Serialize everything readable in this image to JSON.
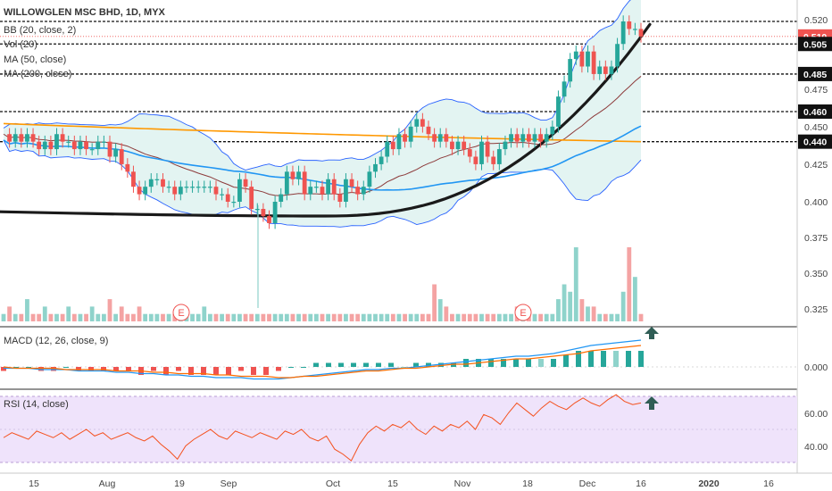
{
  "header": {
    "title": "WILLOWGLEN MSC BHD, 1D, MYX",
    "indicators": [
      "BB (20, close, 2)",
      "Vol (20)",
      "MA (50, close)",
      "MA (200, close)"
    ]
  },
  "panes": {
    "macd_label": "MACD (12, 26, close, 9)",
    "rsi_label": "RSI (14, close)"
  },
  "colors": {
    "up": "#26a69a",
    "down": "#ef5350",
    "vol_up": "#8fd3cb",
    "vol_down": "#f4a3a3",
    "bb_band": "#2962ff",
    "bb_fill": "#e3f4f2",
    "ma_mid": "#8d3b3b",
    "ma50": "#2196f3",
    "ma200": "#ff9800",
    "trend_curve": "#1a1a1a",
    "macd_line": "#2196f3",
    "signal_line": "#ff6d00",
    "rsi_line": "#f4511e",
    "rsi_band": "#efe3fb",
    "arrow": "#2f5d55",
    "last_price_tag": "#ef5350"
  },
  "icons": [
    "earnings-e-icon",
    "earnings-e-icon",
    "arrow-up-icon",
    "arrow-up-icon"
  ],
  "chart_data": [
    {
      "type": "candlestick",
      "ylim": [
        0.315,
        0.525
      ],
      "y_ticks": [
        "0.520",
        "0.510",
        "0.505",
        "0.485",
        "0.475",
        "0.460",
        "0.450",
        "0.440",
        "0.425",
        "0.400",
        "0.375",
        "0.350",
        "0.325"
      ],
      "x_ticks": [
        "15",
        "Aug",
        "19",
        "Sep",
        "Oct",
        "15",
        "Nov",
        "18",
        "Dec",
        "16",
        "2020",
        "16"
      ],
      "highlighted_prices": [
        "0.520",
        "0.505",
        "0.485",
        "0.460",
        "0.440"
      ],
      "last_price": "0.510",
      "horizontal_levels": [
        0.52,
        0.505,
        0.485,
        0.46,
        0.44
      ],
      "earnings_markers": [
        "E",
        "E"
      ],
      "closes": [
        0.445,
        0.44,
        0.445,
        0.44,
        0.445,
        0.44,
        0.435,
        0.44,
        0.435,
        0.445,
        0.44,
        0.44,
        0.435,
        0.44,
        0.435,
        0.435,
        0.44,
        0.44,
        0.43,
        0.435,
        0.425,
        0.42,
        0.41,
        0.405,
        0.41,
        0.415,
        0.415,
        0.41,
        0.41,
        0.405,
        0.41,
        0.41,
        0.41,
        0.41,
        0.41,
        0.41,
        0.405,
        0.405,
        0.4,
        0.4,
        0.415,
        0.41,
        0.395,
        0.395,
        0.39,
        0.385,
        0.4,
        0.405,
        0.42,
        0.415,
        0.42,
        0.405,
        0.41,
        0.41,
        0.405,
        0.415,
        0.405,
        0.4,
        0.415,
        0.41,
        0.405,
        0.41,
        0.42,
        0.425,
        0.43,
        0.44,
        0.435,
        0.445,
        0.44,
        0.45,
        0.455,
        0.45,
        0.445,
        0.44,
        0.445,
        0.44,
        0.435,
        0.44,
        0.435,
        0.43,
        0.425,
        0.44,
        0.43,
        0.425,
        0.435,
        0.44,
        0.445,
        0.44,
        0.445,
        0.44,
        0.445,
        0.44,
        0.445,
        0.45,
        0.47,
        0.48,
        0.495,
        0.5,
        0.49,
        0.5,
        0.485,
        0.49,
        0.485,
        0.49,
        0.505,
        0.52,
        0.515,
        0.515,
        0.51
      ],
      "volumes": [
        1,
        2,
        1,
        1,
        3,
        1,
        1,
        2,
        1,
        1,
        1,
        2,
        1,
        1,
        1,
        2,
        1,
        1,
        3,
        1,
        2,
        1,
        1,
        2,
        1,
        1,
        1,
        1,
        1,
        1,
        1,
        1,
        1,
        1,
        2,
        1,
        1,
        1,
        1,
        1,
        1,
        1,
        1,
        1,
        1,
        1,
        1,
        1,
        1,
        1,
        1,
        1,
        1,
        1,
        1,
        1,
        1,
        1,
        1,
        1,
        1,
        1,
        1,
        1,
        1,
        1,
        1,
        1,
        1,
        1,
        1,
        1,
        1,
        5,
        3,
        2,
        1,
        1,
        1,
        1,
        1,
        1,
        1,
        1,
        1,
        1,
        1,
        2,
        1,
        1,
        1,
        1,
        1,
        1,
        3,
        5,
        4,
        10,
        3,
        2,
        2,
        1,
        1,
        1,
        1,
        4,
        10,
        6,
        1
      ]
    },
    {
      "type": "line",
      "title": "MACD (12, 26, close, 9)",
      "y_ticks": [
        "0.000"
      ],
      "macd": [
        -0.001,
        -0.001,
        -0.001,
        -0.002,
        -0.002,
        -0.002,
        -0.003,
        -0.003,
        -0.003,
        -0.004,
        -0.004,
        -0.005,
        -0.005,
        -0.006,
        -0.006,
        -0.007,
        -0.007,
        -0.008,
        -0.008,
        -0.008,
        -0.009,
        -0.009,
        -0.009,
        -0.008,
        -0.007,
        -0.006,
        -0.005,
        -0.004,
        -0.003,
        -0.002,
        -0.002,
        -0.001,
        -0.001,
        0.0,
        0.001,
        0.002,
        0.003,
        0.004,
        0.005,
        0.006,
        0.007,
        0.008,
        0.008,
        0.009,
        0.01,
        0.012,
        0.014,
        0.016,
        0.017,
        0.018,
        0.019,
        0.02
      ],
      "signal": [
        -0.0,
        -0.001,
        -0.001,
        -0.001,
        -0.001,
        -0.002,
        -0.002,
        -0.002,
        -0.002,
        -0.003,
        -0.003,
        -0.003,
        -0.004,
        -0.004,
        -0.005,
        -0.005,
        -0.005,
        -0.006,
        -0.006,
        -0.007,
        -0.007,
        -0.007,
        -0.008,
        -0.008,
        -0.007,
        -0.007,
        -0.006,
        -0.005,
        -0.004,
        -0.003,
        -0.003,
        -0.002,
        -0.001,
        -0.001,
        0.0,
        0.001,
        0.002,
        0.002,
        0.003,
        0.004,
        0.005,
        0.006,
        0.006,
        0.007,
        0.008,
        0.009,
        0.01,
        0.012,
        0.013,
        0.014,
        0.015,
        0.016
      ]
    },
    {
      "type": "line",
      "title": "RSI (14, close)",
      "y_ticks": [
        "60.00",
        "40.00"
      ],
      "ylim": [
        25,
        75
      ],
      "band": [
        30,
        70
      ],
      "values": [
        45,
        48,
        46,
        44,
        49,
        47,
        45,
        48,
        44,
        47,
        50,
        46,
        48,
        44,
        46,
        48,
        45,
        43,
        46,
        41,
        37,
        32,
        40,
        44,
        47,
        50,
        46,
        44,
        49,
        47,
        45,
        48,
        46,
        44,
        49,
        47,
        50,
        45,
        43,
        46,
        38,
        35,
        31,
        41,
        48,
        52,
        49,
        53,
        51,
        55,
        50,
        47,
        52,
        49,
        53,
        51,
        55,
        50,
        59,
        57,
        53,
        60,
        66,
        62,
        58,
        63,
        67,
        64,
        62,
        66,
        69,
        66,
        64,
        68,
        71,
        67,
        65,
        66
      ]
    }
  ]
}
